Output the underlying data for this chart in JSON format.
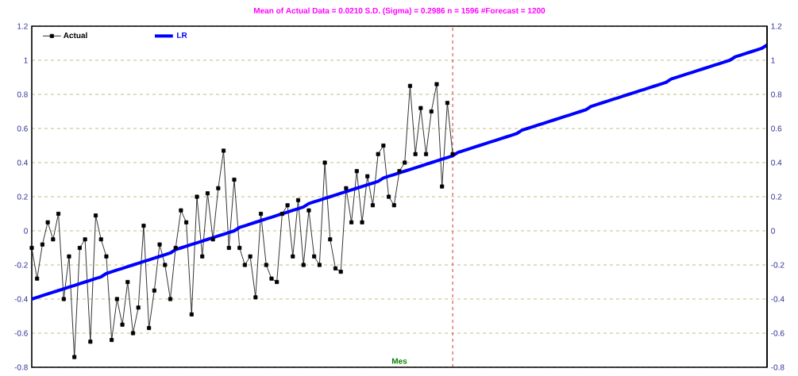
{
  "chart_data": {
    "type": "line",
    "title": "Mean of Actual Data = 0.0210    S.D. (Sigma) = 0.2986    n = 1596    #Forecast = 1200",
    "xlabel": "Mes",
    "categories": [
      null,
      null,
      null,
      null,
      null,
      null,
      null,
      null,
      null,
      null,
      null,
      null,
      null,
      null,
      null,
      null,
      null,
      null,
      null,
      null,
      null,
      null,
      null,
      null,
      null,
      null,
      null,
      null,
      null,
      null,
      null,
      null,
      null,
      null,
      null,
      null,
      null,
      null,
      null,
      null,
      null,
      null,
      null,
      null,
      null,
      null,
      null,
      null,
      null,
      null,
      null,
      null,
      null,
      null,
      null,
      null,
      null,
      null,
      null,
      null,
      null,
      null,
      null,
      null,
      null,
      null,
      null,
      null,
      null,
      null,
      null,
      null,
      null,
      null,
      null,
      null,
      null,
      null,
      null,
      null,
      null,
      null,
      null,
      null,
      null,
      null,
      null,
      null,
      null,
      null,
      null,
      null,
      null,
      null,
      null,
      null,
      null,
      null,
      null,
      null,
      null,
      null,
      null,
      null,
      null,
      null,
      null,
      null,
      null,
      null,
      null,
      null,
      null,
      null,
      null,
      null,
      null,
      null,
      null,
      null,
      null,
      null,
      null,
      null,
      null,
      null,
      null,
      null,
      null,
      null,
      null,
      null,
      null,
      null,
      null,
      null,
      null,
      null,
      null
    ],
    "ylim": [
      -0.8,
      1.2
    ],
    "yticks": [
      -0.8,
      -0.6,
      -0.4,
      -0.2,
      0,
      0.2,
      0.4,
      0.6,
      0.8,
      1,
      1.2
    ],
    "y2lim": [
      -0.8,
      1.2
    ],
    "y2ticks": [
      -0.8,
      -0.6,
      -0.4,
      -0.2,
      0,
      0.2,
      0.4,
      0.6,
      0.8,
      1,
      1.2
    ],
    "tick_labels": "y",
    "grid": "y",
    "legend": "top left",
    "series": [
      {
        "name": "Actual",
        "color": "#000000",
        "marker": "square",
        "values": [
          -0.1,
          -0.28,
          -0.08,
          0.05,
          -0.05,
          0.1,
          -0.4,
          -0.15,
          -0.74,
          -0.1,
          -0.05,
          -0.65,
          0.09,
          -0.05,
          -0.15,
          -0.64,
          -0.4,
          -0.55,
          -0.3,
          -0.6,
          -0.45,
          0.03,
          -0.57,
          -0.35,
          -0.08,
          -0.2,
          -0.4,
          -0.1,
          0.12,
          0.05,
          -0.49,
          0.2,
          -0.15,
          0.22,
          -0.05,
          0.25,
          0.47,
          -0.1,
          0.3,
          -0.1,
          -0.2,
          -0.15,
          -0.39,
          0.1,
          -0.2,
          -0.28,
          -0.3,
          0.1,
          0.15,
          -0.15,
          0.18,
          -0.2,
          0.12,
          -0.15,
          -0.2,
          0.4,
          -0.05,
          -0.22,
          -0.24,
          0.25,
          0.05,
          0.35,
          0.05,
          0.32,
          0.15,
          0.45,
          0.5,
          0.2,
          0.15,
          0.35,
          0.4,
          0.85,
          0.45,
          0.72,
          0.45,
          0.7,
          0.86,
          0.26,
          0.75,
          0.45,
          null,
          null,
          null,
          null,
          null,
          null,
          null,
          null,
          null,
          null,
          null,
          null,
          null,
          null,
          null,
          null,
          null,
          null,
          null,
          null,
          null,
          null,
          null,
          null,
          null,
          null,
          null,
          null,
          null,
          null,
          null,
          null,
          null,
          null,
          null,
          null,
          null,
          null,
          null,
          null,
          null,
          null,
          null,
          null,
          null,
          null,
          null,
          null,
          null,
          null,
          null,
          null,
          null,
          null,
          null,
          null,
          null,
          null,
          null
        ]
      },
      {
        "name": "LR",
        "color": "#0000ff",
        "marker": "none",
        "values": [
          -0.4,
          -0.39,
          -0.38,
          -0.37,
          -0.36,
          -0.35,
          -0.34,
          -0.33,
          -0.32,
          -0.31,
          -0.3,
          -0.29,
          -0.28,
          -0.27,
          -0.25,
          -0.24,
          -0.23,
          -0.22,
          -0.21,
          -0.2,
          -0.19,
          -0.18,
          -0.17,
          -0.16,
          -0.15,
          -0.14,
          -0.13,
          -0.11,
          -0.1,
          -0.09,
          -0.08,
          -0.07,
          -0.06,
          -0.05,
          -0.04,
          -0.03,
          -0.02,
          -0.01,
          0.0,
          0.02,
          0.03,
          0.04,
          0.05,
          0.06,
          0.07,
          0.08,
          0.09,
          0.1,
          0.11,
          0.12,
          0.13,
          0.14,
          0.16,
          0.17,
          0.18,
          0.19,
          0.2,
          0.21,
          0.22,
          0.23,
          0.24,
          0.25,
          0.26,
          0.27,
          0.28,
          0.29,
          0.31,
          0.32,
          0.33,
          0.34,
          0.35,
          0.36,
          0.37,
          0.38,
          0.39,
          0.4,
          0.41,
          0.42,
          0.43,
          0.44,
          0.46,
          0.47,
          0.48,
          0.49,
          0.5,
          0.51,
          0.52,
          0.53,
          0.54,
          0.55,
          0.56,
          0.57,
          0.59,
          0.6,
          0.61,
          0.62,
          0.63,
          0.64,
          0.65,
          0.66,
          0.67,
          0.68,
          0.69,
          0.7,
          0.71,
          0.73,
          0.74,
          0.75,
          0.76,
          0.77,
          0.78,
          0.79,
          0.8,
          0.81,
          0.82,
          0.83,
          0.84,
          0.85,
          0.86,
          0.87,
          0.89,
          0.9,
          0.91,
          0.92,
          0.93,
          0.94,
          0.95,
          0.96,
          0.97,
          0.98,
          0.99,
          1.0,
          1.02,
          1.03,
          1.04,
          1.05,
          1.06,
          1.07,
          1.09
        ]
      }
    ]
  }
}
